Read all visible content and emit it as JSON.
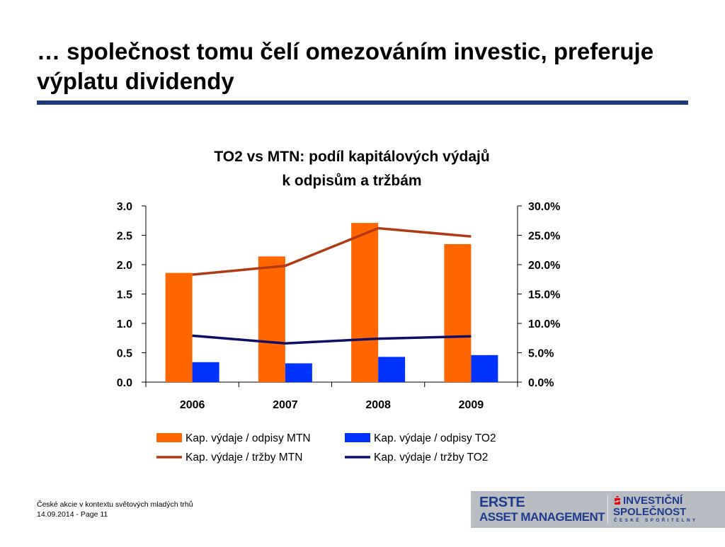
{
  "slide": {
    "title": "… společnost tomu čelí omezováním investic, preferuje výplatu dividendy"
  },
  "chart_data": {
    "type": "bar",
    "title": "TO2 vs MTN: podíl kapitálových výdajů",
    "subtitle": "k odpisům a tržbám",
    "categories": [
      "2006",
      "2007",
      "2008",
      "2009"
    ],
    "left_axis": {
      "ylim": [
        0,
        3
      ],
      "ticks": [
        "0.0",
        "0.5",
        "1.0",
        "1.5",
        "2.0",
        "2.5",
        "3.0"
      ]
    },
    "right_axis": {
      "ylim": [
        0,
        30
      ],
      "ticks": [
        "0.0%",
        "5.0%",
        "10.0%",
        "15.0%",
        "20.0%",
        "25.0%",
        "30.0%"
      ]
    },
    "series": [
      {
        "name": "Kap. výdaje / odpisy MTN",
        "type": "bar",
        "axis": "left",
        "color": "#ff6600",
        "values": [
          1.86,
          2.14,
          2.71,
          2.35
        ]
      },
      {
        "name": "Kap. výdaje / odpisy TO2",
        "type": "bar",
        "axis": "left",
        "color": "#0033ff",
        "values": [
          0.34,
          0.32,
          0.43,
          0.46
        ]
      },
      {
        "name": "Kap. výdaje / tržby MTN",
        "type": "line",
        "axis": "right",
        "color": "#b03a12",
        "values": [
          18.3,
          19.8,
          26.2,
          24.8
        ]
      },
      {
        "name": "Kap. výdaje / tržby TO2",
        "type": "line",
        "axis": "right",
        "color": "#0d1066",
        "values": [
          7.9,
          6.6,
          7.4,
          7.8
        ]
      }
    ],
    "legend": "bottom",
    "grid": false
  },
  "footer": {
    "line1": "České akcie v kontextu světových mladých trhů",
    "line2": "14.09.2014 - Page 11"
  },
  "logo": {
    "erste": "ERSTE",
    "asset_management": "ASSET MANAGEMENT",
    "isp_line1": "INVESTIČNÍ",
    "isp_line2": "SPOLEČNOST",
    "isp_line3": "ČESKÉ SPOŘITELNY",
    "colors": {
      "brand_blue": "#1f3b8c",
      "brand_red": "#e30613",
      "box_grey": "#b8bcc3"
    }
  }
}
